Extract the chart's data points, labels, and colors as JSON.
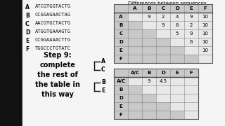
{
  "title": "Differences between sequences",
  "sequences": [
    [
      "A",
      "ATCGTGGTACTG"
    ],
    [
      "B",
      "CCGGAGAACTAG"
    ],
    [
      "C",
      "AACGTGCTACTG"
    ],
    [
      "D",
      "ATGGTGAAAGTG"
    ],
    [
      "E",
      "CCGGAAAACTTG"
    ],
    [
      "F",
      "TGGCCCTGTATC"
    ]
  ],
  "table1_cols": [
    "",
    "A",
    "B",
    "C",
    "D",
    "E",
    "F"
  ],
  "table1_rows": [
    "A",
    "B",
    "C",
    "D",
    "E",
    "F"
  ],
  "table1_data": [
    [
      null,
      null,
      9,
      2,
      4,
      9,
      10
    ],
    [
      null,
      null,
      null,
      9,
      6,
      2,
      10
    ],
    [
      null,
      null,
      null,
      null,
      5,
      9,
      10
    ],
    [
      null,
      null,
      null,
      null,
      null,
      6,
      10
    ],
    [
      null,
      null,
      null,
      null,
      null,
      null,
      10
    ],
    [
      null,
      null,
      null,
      null,
      null,
      null,
      null
    ]
  ],
  "table2_cols": [
    "",
    "A/C",
    "B",
    "D",
    "E",
    "F"
  ],
  "table2_rows": [
    "A/C",
    "B",
    "D",
    "E",
    "F"
  ],
  "table2_data": [
    [
      null,
      null,
      9,
      "4.5",
      null,
      null
    ],
    [
      null,
      null,
      null,
      null,
      null,
      null
    ],
    [
      null,
      null,
      null,
      null,
      null,
      null
    ],
    [
      null,
      null,
      null,
      null,
      null,
      null
    ],
    [
      null,
      null,
      null,
      null,
      null,
      null
    ]
  ],
  "step_text": "Step 9:\ncomplete\nthe rest of\nthe table in\nthis way",
  "bg_left": "#000000",
  "bg_right": "#ffffff",
  "gray_cell": "#c8c8c8",
  "white_cell": "#f0f0f0",
  "header_bg": "#d0d0d0"
}
